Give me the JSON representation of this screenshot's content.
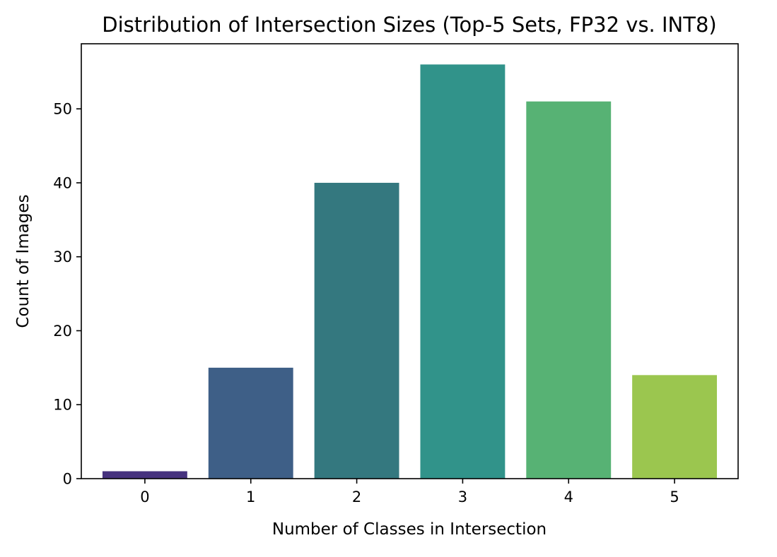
{
  "chart_data": {
    "type": "bar",
    "title": "Distribution of Intersection Sizes (Top-5 Sets, FP32 vs. INT8)",
    "xlabel": "Number of Classes in Intersection",
    "ylabel": "Count of Images",
    "categories": [
      "0",
      "1",
      "2",
      "3",
      "4",
      "5"
    ],
    "values": [
      1,
      15,
      40,
      56,
      51,
      14
    ],
    "colors": [
      "#46327e",
      "#3e5f87",
      "#34787f",
      "#31938a",
      "#57b274",
      "#9bc64f"
    ],
    "ylim": [
      0,
      58.8
    ],
    "yticks": [
      0,
      10,
      20,
      30,
      40,
      50
    ],
    "grid": false,
    "legend": "none"
  }
}
